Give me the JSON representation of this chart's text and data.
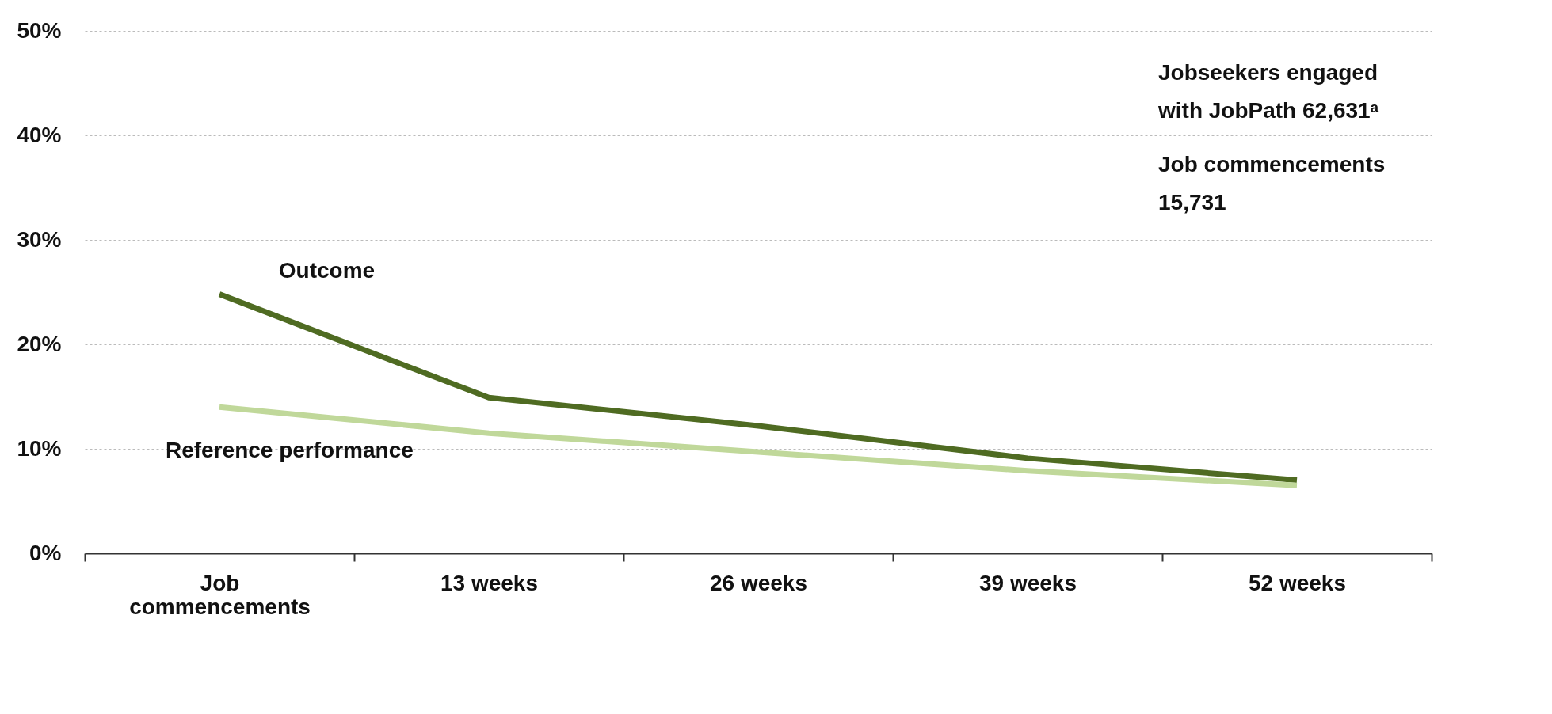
{
  "chart_data": {
    "type": "line",
    "categories": [
      "Job commencements",
      "13 weeks",
      "26 weeks",
      "39 weeks",
      "52 weeks"
    ],
    "series": [
      {
        "name": "Outcome",
        "color": "#4f6b22",
        "values": [
          24.8,
          14.9,
          12.2,
          9.1,
          7.0
        ]
      },
      {
        "name": "Reference performance",
        "color": "#c0d89a",
        "values": [
          14.0,
          11.5,
          9.7,
          7.9,
          6.5
        ]
      }
    ],
    "ylim": [
      0,
      50
    ],
    "yticks": [
      {
        "value": 0,
        "label": "0%"
      },
      {
        "value": 10,
        "label": "10%"
      },
      {
        "value": 20,
        "label": "20%"
      },
      {
        "value": 30,
        "label": "30%"
      },
      {
        "value": 40,
        "label": "40%"
      },
      {
        "value": 50,
        "label": "50%"
      }
    ],
    "grid": "y",
    "marker": "none",
    "line_style": "solid",
    "annotations": [
      "Jobseekers engaged with JobPath 62,631ᵃ",
      "Job commencements 15,731"
    ]
  }
}
